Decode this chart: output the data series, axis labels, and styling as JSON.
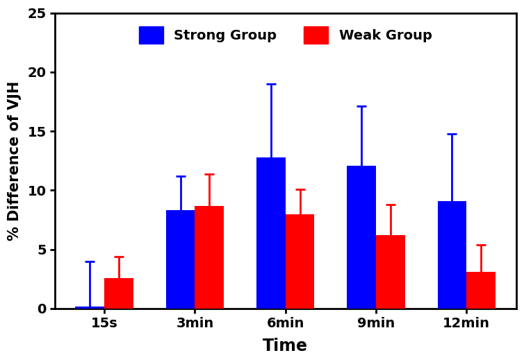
{
  "categories": [
    "15s",
    "3min",
    "6min",
    "9min",
    "12min"
  ],
  "strong_values": [
    0.2,
    8.3,
    12.8,
    12.1,
    9.1
  ],
  "strong_errors": [
    3.8,
    2.9,
    6.2,
    5.0,
    5.7
  ],
  "weak_values": [
    2.6,
    8.7,
    8.0,
    6.2,
    3.1
  ],
  "weak_errors": [
    1.8,
    2.7,
    2.1,
    2.6,
    2.3
  ],
  "strong_color": "#0000FF",
  "weak_color": "#FF0000",
  "ylabel": "% Difference of VJH",
  "xlabel": "Time",
  "ylim": [
    0,
    25
  ],
  "yticks": [
    0,
    5,
    10,
    15,
    20,
    25
  ],
  "legend_labels": [
    "Strong Group",
    "Weak Group"
  ],
  "bar_width": 0.32,
  "figsize": [
    7.54,
    5.22
  ],
  "dpi": 100,
  "background_color": "#ffffff",
  "label_fontsize": 15,
  "tick_fontsize": 14,
  "legend_fontsize": 14
}
